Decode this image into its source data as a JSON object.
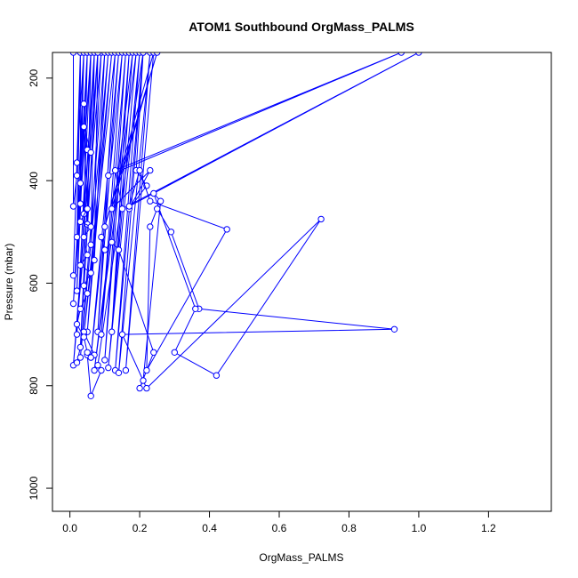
{
  "chart_data": {
    "type": "line",
    "title": "ATOM1 Southbound OrgMass_PALMS",
    "xlabel": "OrgMass_PALMS",
    "ylabel": "Pressure (mbar)",
    "xlim": [
      -0.05,
      1.38
    ],
    "ylim": [
      1045,
      150
    ],
    "y_reversed": true,
    "x_ticks": [
      0.0,
      0.2,
      0.4,
      0.6,
      0.8,
      1.0,
      1.2
    ],
    "x_tick_labels": [
      "0.0",
      "0.2",
      "0.4",
      "0.6",
      "0.8",
      "1.0",
      "1.2"
    ],
    "y_ticks": [
      200,
      400,
      600,
      800,
      1000
    ],
    "y_tick_labels": [
      "200",
      "400",
      "600",
      "800",
      "1000"
    ],
    "grid": false,
    "series": [
      {
        "color": "#0000ff",
        "marker": "open-circle",
        "points": [
          [
            0.01,
            150
          ],
          [
            0.01,
            450
          ],
          [
            0.02,
            390
          ],
          [
            0.03,
            150
          ],
          [
            0.02,
            510
          ],
          [
            0.04,
            150
          ],
          [
            0.02,
            365
          ],
          [
            0.01,
            585
          ],
          [
            0.03,
            150
          ],
          [
            0.03,
            405
          ],
          [
            0.05,
            150
          ],
          [
            0.02,
            615
          ],
          [
            0.04,
            150
          ],
          [
            0.03,
            445
          ],
          [
            0.06,
            150
          ],
          [
            0.01,
            640
          ],
          [
            0.05,
            150
          ],
          [
            0.04,
            465
          ],
          [
            0.07,
            150
          ],
          [
            0.02,
            700
          ],
          [
            0.06,
            150
          ],
          [
            0.05,
            485
          ],
          [
            0.08,
            150
          ],
          [
            0.03,
            725
          ],
          [
            0.07,
            150
          ],
          [
            0.06,
            525
          ],
          [
            0.09,
            150
          ],
          [
            0.01,
            760
          ],
          [
            0.08,
            150
          ],
          [
            0.07,
            555
          ],
          [
            0.1,
            150
          ],
          [
            0.03,
            745
          ],
          [
            0.11,
            150
          ],
          [
            0.05,
            695
          ],
          [
            0.12,
            150
          ],
          [
            0.04,
            700
          ],
          [
            0.13,
            150
          ],
          [
            0.08,
            695
          ],
          [
            0.14,
            150
          ],
          [
            0.06,
            745
          ],
          [
            0.15,
            150
          ],
          [
            0.09,
            700
          ],
          [
            0.16,
            150
          ],
          [
            0.1,
            750
          ],
          [
            0.17,
            150
          ],
          [
            0.12,
            695
          ],
          [
            0.18,
            150
          ],
          [
            0.07,
            770
          ],
          [
            0.19,
            150
          ],
          [
            0.11,
            765
          ],
          [
            0.2,
            150
          ],
          [
            0.13,
            770
          ],
          [
            0.21,
            150
          ],
          [
            0.14,
            775
          ],
          [
            0.23,
            150
          ],
          [
            0.16,
            770
          ],
          [
            0.24,
            150
          ],
          [
            0.1,
            490
          ],
          [
            0.25,
            150
          ],
          [
            0.12,
            455
          ],
          [
            0.23,
            380
          ],
          [
            0.17,
            455
          ],
          [
            0.22,
            410
          ],
          [
            0.19,
            380
          ],
          [
            0.21,
            150
          ],
          [
            0.08,
            760
          ],
          [
            0.09,
            770
          ],
          [
            0.06,
            820
          ],
          [
            0.05,
            740
          ],
          [
            0.07,
            740
          ],
          [
            0.04,
            695
          ],
          [
            0.02,
            755
          ]
        ]
      },
      {
        "color": "#0000ff",
        "marker": "open-circle",
        "points": [
          [
            0.04,
            250
          ],
          [
            0.05,
            340
          ],
          [
            0.06,
            345
          ],
          [
            0.04,
            295
          ],
          [
            0.05,
            455
          ],
          [
            0.03,
            480
          ],
          [
            0.06,
            490
          ],
          [
            0.04,
            510
          ],
          [
            0.05,
            545
          ],
          [
            0.03,
            565
          ],
          [
            0.06,
            580
          ],
          [
            0.04,
            605
          ],
          [
            0.05,
            620
          ],
          [
            0.03,
            650
          ],
          [
            0.02,
            680
          ],
          [
            0.04,
            705
          ],
          [
            0.05,
            735
          ],
          [
            0.06,
            745
          ]
        ]
      },
      {
        "color": "#0000ff",
        "marker": "open-circle",
        "points": [
          [
            0.11,
            390
          ],
          [
            0.95,
            150
          ],
          [
            0.13,
            380
          ],
          [
            0.15,
            455
          ],
          [
            1.0,
            150
          ],
          [
            0.17,
            450
          ],
          [
            0.2,
            380
          ],
          [
            0.23,
            440
          ],
          [
            0.45,
            495
          ],
          [
            0.22,
            770
          ],
          [
            0.23,
            490
          ],
          [
            0.25,
            455
          ],
          [
            0.29,
            500
          ],
          [
            0.37,
            650
          ],
          [
            0.93,
            690
          ],
          [
            0.15,
            700
          ],
          [
            0.22,
            805
          ],
          [
            0.72,
            475
          ],
          [
            0.42,
            780
          ],
          [
            0.3,
            735
          ],
          [
            0.36,
            650
          ],
          [
            0.24,
            425
          ],
          [
            0.26,
            440
          ],
          [
            0.21,
            790
          ],
          [
            0.2,
            805
          ],
          [
            0.24,
            735
          ],
          [
            0.14,
            535
          ],
          [
            0.12,
            520
          ],
          [
            0.1,
            535
          ],
          [
            0.09,
            510
          ]
        ]
      }
    ]
  }
}
